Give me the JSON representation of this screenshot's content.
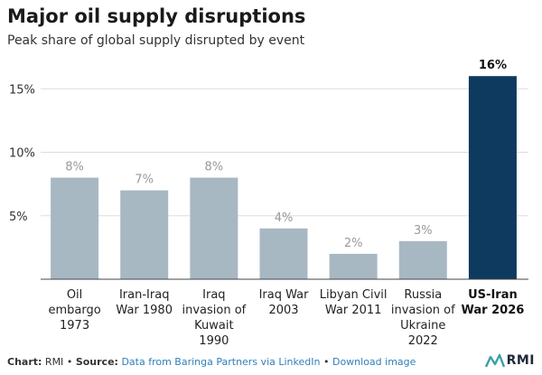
{
  "header": {
    "title": "Major oil supply disruptions",
    "subtitle": "Peak share of global supply disrupted by event"
  },
  "footer": {
    "chart_prefix": "Chart:",
    "chart_by": "RMI",
    "sep1": "•",
    "source_prefix": "Source:",
    "source_link": "Data from Baringa Partners via LinkedIn",
    "sep2": "•",
    "download_link": "Download image"
  },
  "logo": {
    "text": "RMI"
  },
  "colors": {
    "bar": "#a7b8c3",
    "highlight": "#0d3a5e",
    "grid": "#dddddd",
    "axis": "#444444"
  },
  "chart_data": {
    "type": "bar",
    "title": "Major oil supply disruptions",
    "subtitle": "Peak share of global supply disrupted by event",
    "categories": [
      [
        "Oil",
        "embargo",
        "1973"
      ],
      [
        "Iran-Iraq",
        "War 1980"
      ],
      [
        "Iraq",
        "invasion of",
        "Kuwait",
        "1990"
      ],
      [
        "Iraq War",
        "2003"
      ],
      [
        "Libyan Civil",
        "War 2011"
      ],
      [
        "Russia",
        "invasion of",
        "Ukraine",
        "2022"
      ],
      [
        "US-Iran",
        "War 2026"
      ]
    ],
    "values": [
      8,
      7,
      8,
      4,
      2,
      3,
      16
    ],
    "value_labels": [
      "8%",
      "7%",
      "8%",
      "4%",
      "2%",
      "3%",
      "16%"
    ],
    "highlight_index": 6,
    "yticks": [
      5,
      10,
      15
    ],
    "ytick_labels": [
      "5%",
      "10%",
      "15%"
    ],
    "ylim": [
      0,
      16.3
    ],
    "grid": true,
    "xlabel": "",
    "ylabel": ""
  }
}
